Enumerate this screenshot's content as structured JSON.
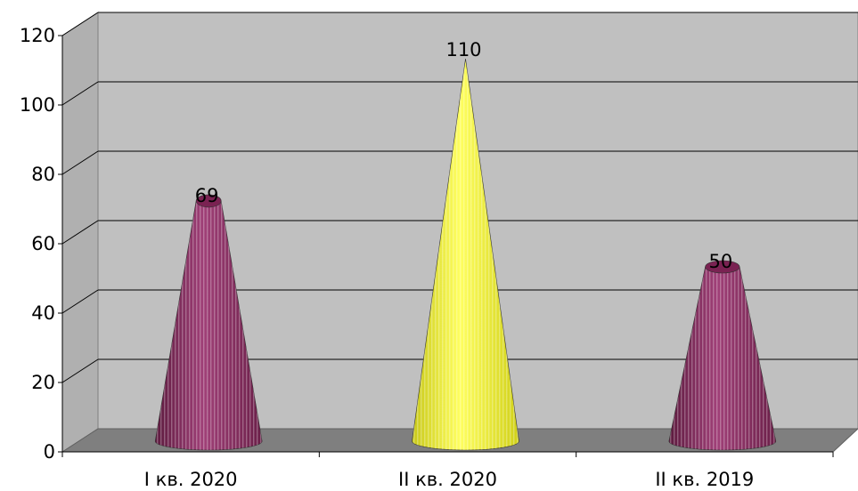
{
  "chart_data": {
    "type": "bar",
    "shape": "cone",
    "categories": [
      "I кв. 2020",
      "II кв. 2020",
      "II кв. 2019"
    ],
    "values": [
      69,
      110,
      50
    ],
    "data_labels": [
      "69",
      "110",
      "50"
    ],
    "y_ticks": [
      "0",
      "20",
      "40",
      "60",
      "80",
      "100",
      "120"
    ],
    "ylim": [
      0,
      120
    ],
    "grid": true,
    "legend": "none",
    "colors": {
      "bar_purple": "#8a2a5e",
      "bar_yellow": "#f2f21e",
      "wall": "#c0c0c0",
      "floor": "#7f7f7f",
      "gridline": "#000000"
    },
    "bar_colors": [
      "bar_purple",
      "bar_yellow",
      "bar_purple"
    ]
  }
}
